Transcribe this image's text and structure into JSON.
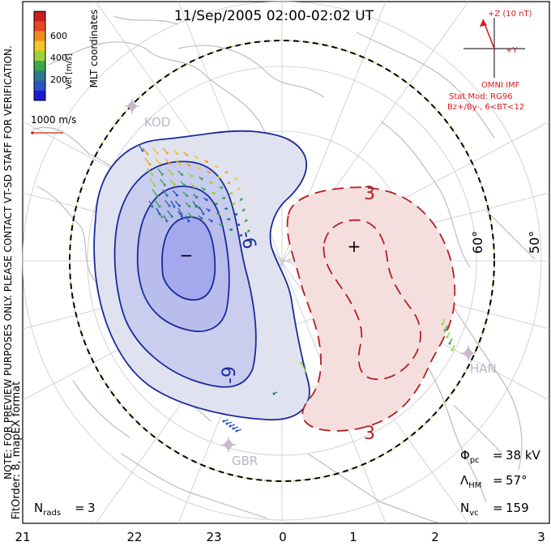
{
  "title": "11/Sep/2005 02:00-02:02 UT",
  "colorbar": {
    "label": "Vel [m/s]",
    "ticks": [
      "600",
      "400",
      "200"
    ],
    "colors": [
      "#c81e1e",
      "#e8461e",
      "#f08c1e",
      "#f0c828",
      "#9ad43a",
      "#3aa84a",
      "#2e7a8c",
      "#2a55c8",
      "#1a1ad8"
    ]
  },
  "side_labels": {
    "coords": "MLT coordinates",
    "note": "NOTE: FOR PREVIEW PURPOSES ONLY. PLEASE CONTACT VT-SD STAFF FOR VERIFICATION.",
    "fit": "FitOrder: 8, mapEX format"
  },
  "scale_vector": {
    "label": "1000 m/s"
  },
  "imf": {
    "z_label": "+Z (10 nT)",
    "y_label": "+Y",
    "source": "OMNI IMF",
    "model": "Stat Mod: RG96",
    "condition": "Bz+/By-, 6<BT<12"
  },
  "stations": [
    "KOD",
    "HAN",
    "GBR"
  ],
  "latitude_labels": [
    "60°",
    "50°"
  ],
  "contour_labels": [
    "-6",
    "-9",
    "3",
    "3"
  ],
  "potential_markers": {
    "min": "−",
    "max": "+"
  },
  "stats": {
    "phi_pc": "38 kV",
    "lambda_hm": "57°",
    "n_vc": "159",
    "n_rads": "3"
  },
  "mlt_axis": [
    "21",
    "22",
    "23",
    "0",
    "1",
    "2",
    "3"
  ],
  "colors": {
    "negative_fill_outer": "#e0e2f0",
    "negative_fill_mid": "#c9cdee",
    "negative_fill_inner": "#a3a9ec",
    "negative_contour": "#1a2a9c",
    "positive_fill": "#f5dede",
    "positive_contour": "#b42020",
    "coastline": "#bcbcbc",
    "imf": "#d41c1c"
  }
}
